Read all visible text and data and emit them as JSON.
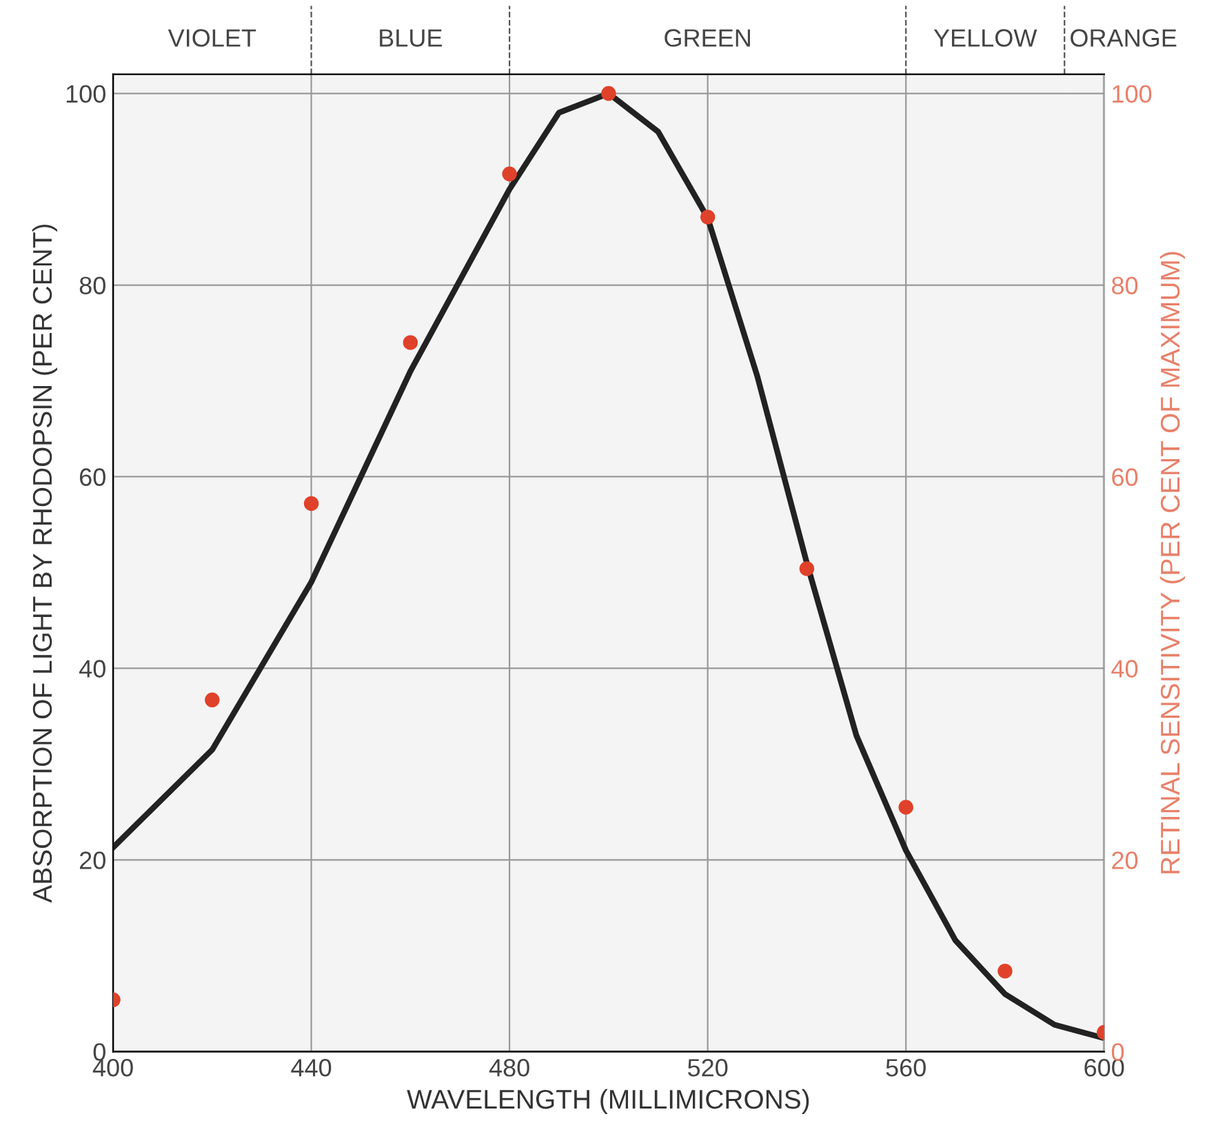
{
  "chart_data": {
    "type": "line",
    "xlabel": "WAVELENGTH (MILLIMICRONS)",
    "ylabel": "ABSORPTION OF LIGHT BY RHODOPSIN (PER CENT)",
    "y2label": "RETINAL SENSITIVITY (PER CENT OF MAXIMUM)",
    "xlim": [
      400,
      600
    ],
    "xticks": [
      400,
      440,
      480,
      520,
      560,
      600
    ],
    "ylim": [
      0,
      102
    ],
    "yticks": [
      0,
      20,
      40,
      60,
      80,
      100
    ],
    "y2lim": [
      0,
      102
    ],
    "y2ticks": [
      0,
      20,
      40,
      60,
      80,
      100
    ],
    "grid": true,
    "legend": false,
    "series": [
      {
        "type": "line",
        "color": "#222222",
        "marker": "none",
        "line_style": "solid",
        "x": [
          400,
          420,
          440,
          460,
          480,
          490,
          500,
          510,
          520,
          530,
          540,
          550,
          560,
          570,
          580,
          590,
          600
        ],
        "values": [
          21.3,
          31.5,
          49,
          71,
          90,
          98,
          100,
          96,
          87,
          70.5,
          51,
          33,
          21,
          11.6,
          6,
          2.8,
          1.4
        ]
      },
      {
        "type": "scatter",
        "axis": "y2",
        "color": "#e0412a",
        "marker": "circle",
        "x": [
          400,
          420,
          440,
          460,
          480,
          500,
          520,
          540,
          560,
          580,
          600
        ],
        "values": [
          5.4,
          36.7,
          57.2,
          74,
          91.6,
          100,
          87.1,
          50.4,
          25.5,
          8.4,
          2
        ]
      }
    ],
    "bands": [
      {
        "axis": "x",
        "from": 400,
        "to": 440,
        "label": "VIOLET",
        "color": "#f4f4f4"
      },
      {
        "axis": "x",
        "from": 440,
        "to": 480,
        "label": "BLUE",
        "color": "#f4f4f4"
      },
      {
        "axis": "x",
        "from": 480,
        "to": 560,
        "label": "GREEN",
        "color": "#f4f4f4"
      },
      {
        "axis": "x",
        "from": 560,
        "to": 592,
        "label": "YELLOW",
        "color": "#f4f4f4"
      },
      {
        "axis": "x",
        "from": 592,
        "to": 600,
        "label": "ORANGE",
        "color": "#f4f4f4"
      }
    ]
  }
}
